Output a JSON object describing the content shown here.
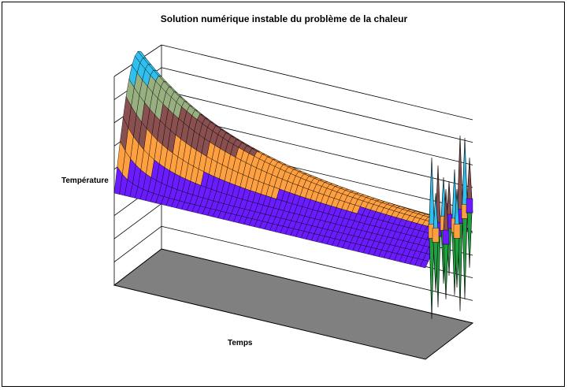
{
  "chart_data": {
    "type": "surface3d",
    "title": "Solution numérique instable du problème de la chaleur",
    "xlabel": "Temps",
    "ylabel": "Température",
    "grid": true,
    "floor_color": "#808080",
    "colors": {
      "band1": "#6a1cff",
      "band2": "#ffa040",
      "band3": "#8a5050",
      "band4": "#98b080",
      "band5": "#30c0f0",
      "spike_low": "#20a040"
    },
    "description_levels": [
      0,
      1,
      2,
      3,
      4,
      5
    ],
    "peak_start": 5.0,
    "plateau_end": 1.0,
    "instability_amplitude": 4.5
  }
}
